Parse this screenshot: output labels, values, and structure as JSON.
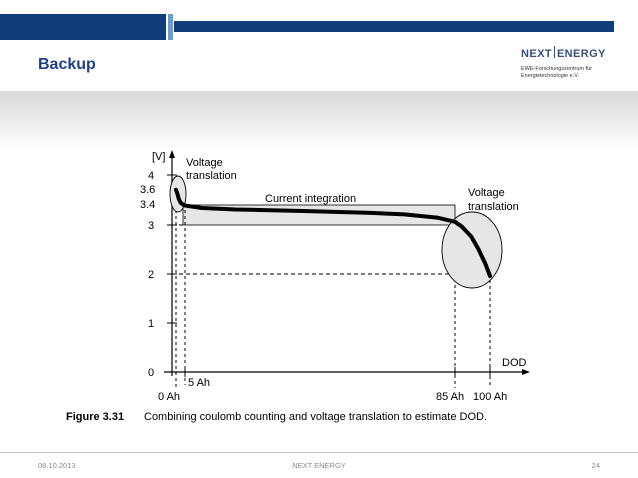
{
  "slide": {
    "title": "Backup",
    "brand_color": "#1f3f88",
    "bar_color": "#0f3d7a",
    "bar_light_color": "#6b9bd1"
  },
  "logo": {
    "word1": "NEXT",
    "word2": "ENERGY",
    "line1": "EWE-Forschungszentrum für",
    "line2": "Energietechnologie e.V."
  },
  "figure": {
    "label": "Figure 3.31",
    "caption": "Combining coulomb counting and voltage translation to estimate DOD.",
    "y_unit": "[V]",
    "x_axis_label": "DOD",
    "y_ticks": [
      "4",
      "3.6",
      "3.4",
      "3",
      "2",
      "1",
      "0"
    ],
    "x_ticks": [
      "0 Ah",
      "5 Ah",
      "85 Ah",
      "100 Ah"
    ],
    "annotation_left_1": "Voltage",
    "annotation_left_2": "translation",
    "annotation_right_1": "Voltage",
    "annotation_right_2": "translation",
    "annotation_middle": "Current integration"
  },
  "chart_data": {
    "type": "line",
    "xlabel": "DOD",
    "ylabel": "[V]",
    "ylim": [
      0,
      4
    ],
    "xlim": [
      0,
      100
    ],
    "x_ticks": [
      0,
      5,
      85,
      100
    ],
    "y_ticks": [
      0,
      1,
      2,
      3,
      3.4,
      3.6,
      4
    ],
    "series": [
      {
        "x": [
          0,
          0.8,
          1.5,
          2.5,
          4,
          5,
          10,
          20,
          40,
          60,
          70,
          80,
          85,
          88,
          92,
          95,
          98,
          100
        ],
        "y": [
          3.7,
          3.62,
          3.52,
          3.44,
          3.4,
          3.38,
          3.33,
          3.3,
          3.27,
          3.23,
          3.2,
          3.13,
          3.05,
          2.95,
          2.75,
          2.5,
          2.2,
          1.95
        ]
      }
    ]
  },
  "footer": {
    "date": "08.10.2013",
    "center": "NEXT ENERGY",
    "page": "24"
  }
}
